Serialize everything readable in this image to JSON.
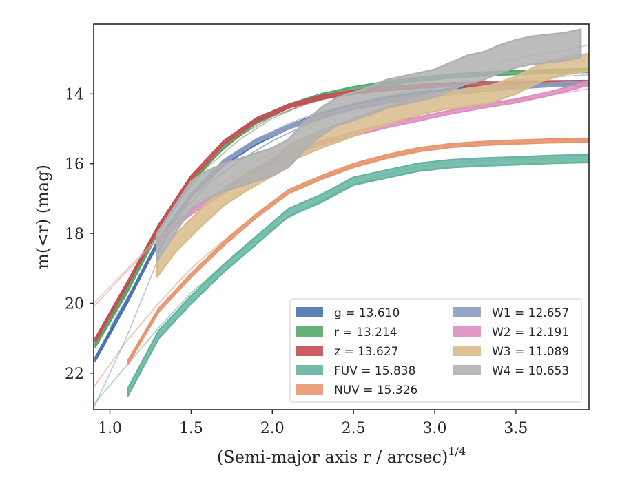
{
  "chart_data": {
    "type": "line",
    "xlabel": "(Semi-major axis r / arcsec)",
    "xlabel_superscript": "1/4",
    "ylabel": "m(<r) (mag)",
    "xlim": [
      0.9,
      3.95
    ],
    "ylim": [
      23.05,
      12.0
    ],
    "y_inverted": true,
    "xticks": [
      1.0,
      1.5,
      2.0,
      2.5,
      3.0,
      3.5
    ],
    "xtick_labels": [
      "1.0",
      "1.5",
      "2.0",
      "2.5",
      "3.0",
      "3.5"
    ],
    "yticks": [
      14,
      16,
      18,
      20,
      22
    ],
    "ytick_labels": [
      "14",
      "16",
      "18",
      "20",
      "22"
    ],
    "grid": false,
    "legend_position": "lower-right",
    "legend_columns": 2,
    "series": [
      {
        "name": "g",
        "legend_label": "g = 13.610",
        "color": "#4c72b0",
        "band_width": 0.1,
        "x": [
          0.91,
          1.1,
          1.3,
          1.5,
          1.7,
          1.9,
          2.1,
          2.3,
          2.5,
          2.7,
          2.9,
          3.1,
          3.3,
          3.5,
          3.7,
          3.95
        ],
        "y": [
          21.6,
          20.0,
          18.2,
          16.9,
          16.0,
          15.4,
          14.95,
          14.6,
          14.35,
          14.15,
          14.0,
          13.9,
          13.82,
          13.77,
          13.74,
          13.71
        ],
        "model_x": [
          1.0,
          1.2,
          1.4,
          1.6,
          1.8,
          2.0,
          2.2,
          2.4,
          2.6,
          2.8,
          3.0,
          3.2,
          3.4,
          3.6,
          3.95
        ],
        "model_y": [
          20.7,
          19.1,
          17.6,
          16.6,
          15.9,
          15.35,
          14.9,
          14.55,
          14.3,
          14.1,
          13.96,
          13.86,
          13.79,
          13.74,
          13.69
        ]
      },
      {
        "name": "r",
        "legend_label": "r = 13.214",
        "color": "#55a868",
        "band_width": 0.1,
        "x": [
          0.91,
          1.1,
          1.3,
          1.5,
          1.7,
          1.9,
          2.1,
          2.3,
          2.5,
          2.7,
          2.9,
          3.1,
          3.3,
          3.5,
          3.7,
          3.95
        ],
        "y": [
          21.2,
          19.7,
          17.9,
          16.5,
          15.5,
          14.8,
          14.35,
          14.05,
          13.85,
          13.7,
          13.58,
          13.49,
          13.43,
          13.39,
          13.36,
          13.33
        ],
        "model_x": [
          1.0,
          1.2,
          1.4,
          1.6,
          1.8,
          2.0,
          2.2,
          2.4,
          2.6,
          2.8,
          3.0,
          3.2,
          3.4,
          3.6,
          3.95
        ],
        "model_y": [
          20.4,
          18.8,
          17.2,
          16.1,
          15.3,
          14.7,
          14.3,
          14.0,
          13.8,
          13.64,
          13.52,
          13.44,
          13.38,
          13.34,
          13.3
        ]
      },
      {
        "name": "z",
        "legend_label": "z = 13.627",
        "color": "#c44e52",
        "band_width": 0.1,
        "x": [
          0.91,
          1.1,
          1.3,
          1.5,
          1.7,
          1.9,
          2.1,
          2.3,
          2.5,
          2.7,
          2.9,
          3.1,
          3.3,
          3.5,
          3.7,
          3.95
        ],
        "y": [
          21.05,
          19.5,
          17.8,
          16.4,
          15.4,
          14.75,
          14.35,
          14.1,
          13.95,
          13.85,
          13.78,
          13.74,
          13.71,
          13.69,
          13.68,
          13.67
        ],
        "model_x": [
          1.0,
          1.2,
          1.4,
          1.6,
          1.8,
          2.0,
          2.2,
          2.4,
          2.6,
          2.8,
          3.0,
          3.2,
          3.4,
          3.6,
          3.95
        ],
        "model_y": [
          20.3,
          18.7,
          17.1,
          16.0,
          15.2,
          14.65,
          14.3,
          14.05,
          13.9,
          13.8,
          13.74,
          13.71,
          13.69,
          13.68,
          13.66
        ]
      },
      {
        "name": "FUV",
        "legend_label": "FUV = 15.838",
        "color": "#64b5a0",
        "band_width": 0.22,
        "x": [
          1.11,
          1.3,
          1.5,
          1.7,
          1.9,
          2.1,
          2.3,
          2.5,
          2.7,
          2.9,
          3.1,
          3.3,
          3.5,
          3.7,
          3.95
        ],
        "y": [
          22.55,
          20.9,
          19.9,
          19.0,
          18.2,
          17.4,
          17.0,
          16.5,
          16.3,
          16.1,
          16.0,
          15.95,
          15.92,
          15.88,
          15.85
        ],
        "model_x": [
          0.9,
          1.1,
          1.3,
          1.5,
          1.7,
          1.9,
          2.1,
          2.3,
          2.5,
          2.7,
          2.9,
          3.1,
          3.3,
          3.5,
          3.7,
          3.95
        ],
        "model_y": [
          22.9,
          21.8,
          20.7,
          19.7,
          18.9,
          18.15,
          17.55,
          17.05,
          16.6,
          16.3,
          16.1,
          15.98,
          15.92,
          15.88,
          15.86,
          15.84
        ]
      },
      {
        "name": "NUV",
        "legend_label": "NUV = 15.326",
        "color": "#e8956f",
        "band_width": 0.1,
        "x": [
          1.11,
          1.3,
          1.5,
          1.7,
          1.9,
          2.1,
          2.3,
          2.5,
          2.7,
          2.9,
          3.1,
          3.3,
          3.5,
          3.7,
          3.95
        ],
        "y": [
          21.7,
          20.2,
          19.2,
          18.3,
          17.5,
          16.8,
          16.4,
          16.05,
          15.8,
          15.6,
          15.48,
          15.42,
          15.38,
          15.35,
          15.33
        ],
        "model_x": [
          0.9,
          1.1,
          1.3,
          1.5,
          1.7,
          1.9,
          2.1,
          2.3,
          2.5,
          2.7,
          2.9,
          3.1,
          3.3,
          3.5,
          3.7,
          3.95
        ],
        "model_y": [
          22.4,
          21.1,
          20.0,
          19.0,
          18.2,
          17.45,
          16.85,
          16.4,
          16.05,
          15.8,
          15.6,
          15.48,
          15.42,
          15.38,
          15.35,
          15.33
        ]
      },
      {
        "name": "W1",
        "legend_label": "W1 = 12.657",
        "color": "#8c9dc4",
        "band_width": 0.1,
        "x": [
          1.29,
          1.4,
          1.5,
          1.7,
          1.9,
          2.1,
          2.3,
          2.5,
          2.7,
          2.9,
          3.1,
          3.3,
          3.5,
          3.7,
          3.95
        ],
        "y": [
          18.6,
          17.6,
          16.9,
          15.95,
          15.35,
          14.95,
          14.65,
          14.4,
          14.22,
          14.08,
          13.97,
          13.88,
          13.8,
          13.74,
          13.68
        ],
        "model_x": [
          0.9,
          1.1,
          1.3,
          1.5,
          1.7,
          1.9,
          2.1,
          2.3,
          2.5,
          2.7,
          2.9,
          3.1,
          3.3,
          3.5,
          3.7,
          3.95
        ],
        "model_y": [
          23.0,
          21.0,
          18.7,
          16.95,
          15.95,
          15.3,
          14.85,
          14.5,
          14.25,
          14.05,
          13.9,
          13.78,
          13.68,
          13.6,
          13.53,
          13.45
        ]
      },
      {
        "name": "W2",
        "legend_label": "W2 = 12.191",
        "color": "#dd8fc1",
        "band_width": 0.1,
        "x": [
          1.29,
          1.5,
          1.7,
          1.9,
          2.1,
          2.3,
          2.5,
          2.7,
          2.9,
          3.1,
          3.3,
          3.5,
          3.7,
          3.95
        ],
        "y": [
          18.2,
          17.4,
          16.8,
          16.2,
          15.75,
          15.4,
          15.15,
          14.92,
          14.72,
          14.52,
          14.35,
          14.2,
          14.0,
          13.7
        ],
        "model_x": [
          0.9,
          1.1,
          1.3,
          1.5,
          1.7,
          1.9,
          2.1,
          2.3,
          2.5,
          2.7,
          2.9,
          3.1,
          3.3,
          3.5,
          3.7,
          3.95
        ],
        "model_y": [
          20.1,
          19.1,
          18.15,
          17.35,
          16.7,
          16.15,
          15.7,
          15.35,
          15.08,
          14.85,
          14.65,
          14.48,
          14.33,
          14.18,
          14.05,
          13.85
        ]
      },
      {
        "name": "W3",
        "legend_label": "W3 = 11.089",
        "color": "#d9bb8b",
        "band_width": 0.5,
        "x": [
          1.29,
          1.4,
          1.55,
          1.7,
          1.85,
          2.0,
          2.15,
          2.3,
          2.45,
          2.6,
          2.75,
          2.9,
          3.05,
          3.2,
          3.35,
          3.5,
          3.65,
          3.8,
          3.95
        ],
        "y": [
          19.0,
          18.3,
          17.6,
          16.95,
          16.5,
          16.1,
          15.6,
          15.3,
          15.05,
          14.78,
          14.55,
          14.35,
          14.2,
          14.1,
          14.0,
          13.75,
          13.4,
          13.2,
          13.1
        ],
        "model_x": [
          0.9,
          1.1,
          1.3,
          1.5,
          1.7,
          1.9,
          2.1,
          2.3,
          2.5,
          2.7,
          2.9,
          3.1,
          3.3,
          3.5,
          3.7,
          3.95
        ],
        "model_y": [
          20.0,
          19.05,
          18.1,
          17.25,
          16.55,
          15.95,
          15.45,
          15.05,
          14.72,
          14.45,
          14.22,
          14.02,
          13.85,
          13.68,
          13.52,
          13.33
        ]
      },
      {
        "name": "W4",
        "legend_label": "W4 = 10.653",
        "color": "#b0b0b0",
        "band_width": 0.8,
        "x": [
          1.29,
          1.4,
          1.5,
          1.6,
          1.7,
          1.8,
          1.9,
          2.0,
          2.1,
          2.2,
          2.3,
          2.4,
          2.5,
          2.6,
          2.7,
          2.8,
          2.9,
          3.0,
          3.1,
          3.2,
          3.3,
          3.4,
          3.5,
          3.6,
          3.7,
          3.8,
          3.9
        ],
        "y": [
          18.4,
          17.6,
          16.9,
          16.6,
          16.4,
          16.25,
          16.1,
          15.95,
          15.7,
          15.2,
          14.8,
          14.5,
          14.35,
          14.2,
          14.0,
          13.9,
          13.8,
          13.7,
          13.5,
          13.3,
          13.2,
          13.0,
          12.85,
          12.75,
          12.7,
          12.65,
          12.55
        ],
        "model_x": [
          3.4,
          3.6,
          3.8,
          3.95
        ],
        "model_y": [
          13.1,
          12.9,
          12.75,
          12.6
        ]
      }
    ]
  }
}
